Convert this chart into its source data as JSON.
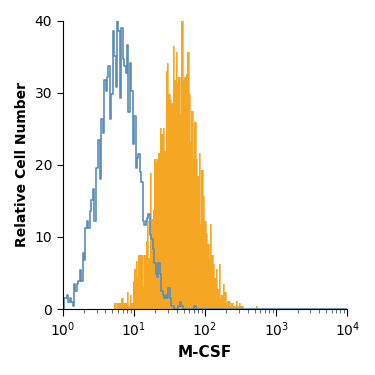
{
  "title": "",
  "xlabel": "M-CSF",
  "ylabel": "Relative Cell Number",
  "xlim": [
    1,
    10000
  ],
  "ylim": [
    0,
    40
  ],
  "yticks": [
    0,
    10,
    20,
    30,
    40
  ],
  "blue_color": "#5b8db8",
  "orange_color": "#f5a623",
  "background_color": "#ffffff",
  "figsize": [
    3.75,
    3.75
  ],
  "dpi": 100
}
